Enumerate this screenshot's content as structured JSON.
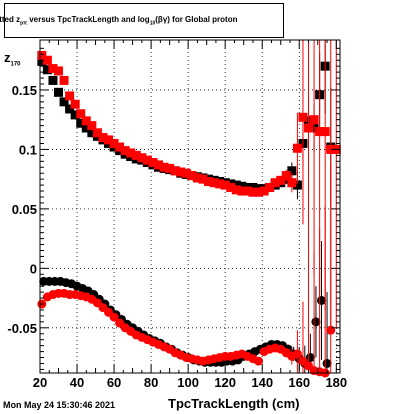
{
  "title": {
    "prefix": "itted  z",
    "sub1": "pπ",
    "middle": " versus TpcTrackLength and log",
    "sub2": "10",
    "suffix": "(βγ) for Global proton"
  },
  "footer": {
    "date": "Mon May 24 15:30:46 2021"
  },
  "chart_data": {
    "type": "scatter",
    "title": "itted zpπ versus TpcTrackLength and log10(βγ) for Global proton",
    "xlabel": "TpcTrackLength (cm)",
    "ylabel": {
      "main": "z",
      "sub": "170"
    },
    "xlim": [
      20,
      182
    ],
    "ylim": [
      -0.088,
      0.192
    ],
    "xticks": [
      20,
      40,
      60,
      80,
      100,
      120,
      140,
      160,
      180
    ],
    "yticks": [
      {
        "value": -0.05,
        "label": "-0.05"
      },
      {
        "value": 0,
        "label": "0"
      },
      {
        "value": 0.05,
        "label": "0.05"
      },
      {
        "value": 0.1,
        "label": "0.1"
      },
      {
        "value": 0.15,
        "label": "0.15"
      }
    ],
    "grid": true,
    "series": [
      {
        "marker": "square",
        "color": "#000000",
        "x": [
          21,
          24,
          27,
          30,
          33,
          36,
          39,
          42,
          45,
          48,
          51,
          54,
          57,
          60,
          63,
          66,
          69,
          72,
          75,
          78,
          81,
          84,
          87,
          90,
          93,
          96,
          99,
          102,
          105,
          108,
          111,
          114,
          117,
          120,
          123,
          126,
          129,
          132,
          135,
          138,
          141,
          144,
          147,
          150,
          153,
          156,
          159,
          162,
          165,
          168,
          171,
          174,
          177
        ],
        "y": [
          0.174,
          0.167,
          0.158,
          0.148,
          0.14,
          0.134,
          0.129,
          0.122,
          0.118,
          0.114,
          0.111,
          0.108,
          0.105,
          0.102,
          0.099,
          0.096,
          0.094,
          0.092,
          0.091,
          0.089,
          0.087,
          0.085,
          0.084,
          0.083,
          0.082,
          0.08,
          0.079,
          0.078,
          0.077,
          0.076,
          0.075,
          0.074,
          0.073,
          0.072,
          0.071,
          0.07,
          0.069,
          0.068,
          0.068,
          0.067,
          0.067,
          0.068,
          0.07,
          0.072,
          0.075,
          0.082,
          0.07,
          0.105,
          0.124,
          0.118,
          0.146,
          0.17,
          0.102
        ],
        "err": [
          0,
          0,
          0,
          0,
          0,
          0,
          0,
          0,
          0,
          0,
          0,
          0,
          0,
          0,
          0,
          0,
          0,
          0,
          0,
          0,
          0,
          0,
          0,
          0,
          0,
          0,
          0,
          0,
          0,
          0,
          0,
          0,
          0,
          0,
          0,
          0,
          0,
          0,
          0,
          0,
          0,
          0,
          0,
          0,
          0.004,
          0.007,
          0.012,
          0.02,
          0.02,
          0.02,
          0.035,
          0.04,
          0.05
        ]
      },
      {
        "marker": "square",
        "color": "#ff0000",
        "x": [
          21,
          24,
          27,
          30,
          33,
          36,
          39,
          42,
          45,
          48,
          51,
          54,
          57,
          60,
          63,
          66,
          69,
          72,
          75,
          78,
          81,
          84,
          87,
          90,
          93,
          96,
          99,
          102,
          105,
          108,
          111,
          114,
          117,
          120,
          123,
          126,
          129,
          132,
          135,
          138,
          141,
          144,
          147,
          150,
          153,
          156,
          159,
          162,
          165,
          168,
          171,
          174,
          177,
          180
        ],
        "y": [
          0.179,
          0.175,
          0.168,
          0.166,
          0.158,
          0.145,
          0.138,
          0.13,
          0.124,
          0.12,
          0.114,
          0.11,
          0.108,
          0.105,
          0.102,
          0.099,
          0.097,
          0.095,
          0.093,
          0.091,
          0.089,
          0.087,
          0.085,
          0.084,
          0.082,
          0.081,
          0.08,
          0.078,
          0.076,
          0.075,
          0.073,
          0.072,
          0.071,
          0.07,
          0.068,
          0.066,
          0.065,
          0.065,
          0.064,
          0.064,
          0.065,
          0.068,
          0.072,
          0.074,
          0.078,
          0.072,
          0.101,
          0.127,
          0.118,
          0.125,
          0.115,
          0.115,
          0.1,
          0.1
        ],
        "err": [
          0,
          0,
          0,
          0,
          0,
          0,
          0,
          0,
          0,
          0,
          0,
          0,
          0,
          0,
          0,
          0,
          0,
          0,
          0,
          0,
          0,
          0,
          0,
          0,
          0,
          0,
          0,
          0,
          0,
          0,
          0,
          0,
          0,
          0,
          0,
          0,
          0,
          0,
          0,
          0,
          0,
          0,
          0,
          0,
          0.005,
          0.008,
          0.03,
          0.09,
          0.12,
          0.13,
          0.14,
          0.15,
          0.15,
          0.15
        ]
      },
      {
        "marker": "circle",
        "color": "#000000",
        "x": [
          22,
          25,
          28,
          31,
          34,
          37,
          40,
          43,
          46,
          49,
          52,
          55,
          58,
          61,
          64,
          67,
          70,
          73,
          76,
          79,
          82,
          85,
          88,
          91,
          94,
          97,
          100,
          103,
          106,
          109,
          112,
          115,
          118,
          121,
          124,
          127,
          130,
          133,
          136,
          139,
          142,
          145,
          148,
          151,
          154,
          157,
          160,
          163,
          166,
          169,
          172,
          175
        ],
        "y": [
          -0.011,
          -0.011,
          -0.011,
          -0.011,
          -0.012,
          -0.013,
          -0.015,
          -0.017,
          -0.019,
          -0.022,
          -0.026,
          -0.03,
          -0.035,
          -0.039,
          -0.043,
          -0.047,
          -0.05,
          -0.053,
          -0.056,
          -0.059,
          -0.061,
          -0.063,
          -0.066,
          -0.068,
          -0.071,
          -0.073,
          -0.075,
          -0.077,
          -0.078,
          -0.079,
          -0.079,
          -0.079,
          -0.079,
          -0.078,
          -0.078,
          -0.077,
          -0.074,
          -0.072,
          -0.07,
          -0.068,
          -0.066,
          -0.064,
          -0.064,
          -0.065,
          -0.068,
          -0.072,
          -0.076,
          -0.08,
          -0.075,
          -0.045,
          -0.027,
          -0.08
        ],
        "err": [
          0,
          0,
          0,
          0,
          0,
          0,
          0,
          0,
          0,
          0,
          0,
          0,
          0,
          0,
          0,
          0,
          0,
          0,
          0,
          0,
          0,
          0,
          0,
          0,
          0,
          0,
          0,
          0,
          0,
          0,
          0,
          0,
          0,
          0,
          0,
          0,
          0,
          0,
          0,
          0,
          0,
          0,
          0,
          0,
          0.004,
          0.006,
          0.01,
          0.015,
          0.02,
          0.03,
          0.05,
          0.06
        ]
      },
      {
        "marker": "circle",
        "color": "#ff0000",
        "x": [
          21,
          24,
          27,
          30,
          33,
          36,
          39,
          42,
          45,
          48,
          51,
          54,
          57,
          60,
          63,
          66,
          69,
          72,
          75,
          78,
          81,
          84,
          87,
          90,
          93,
          96,
          99,
          102,
          105,
          108,
          111,
          114,
          117,
          120,
          123,
          126,
          129,
          132,
          135,
          138,
          141,
          144,
          147,
          150,
          153,
          156,
          159,
          162,
          165,
          168,
          171,
          174,
          177
        ],
        "y": [
          -0.03,
          -0.024,
          -0.022,
          -0.021,
          -0.021,
          -0.022,
          -0.022,
          -0.023,
          -0.024,
          -0.026,
          -0.029,
          -0.033,
          -0.037,
          -0.041,
          -0.046,
          -0.05,
          -0.053,
          -0.056,
          -0.058,
          -0.06,
          -0.062,
          -0.064,
          -0.066,
          -0.068,
          -0.071,
          -0.073,
          -0.075,
          -0.076,
          -0.077,
          -0.078,
          -0.077,
          -0.076,
          -0.075,
          -0.074,
          -0.074,
          -0.073,
          -0.072,
          -0.074,
          -0.076,
          -0.078,
          -0.07,
          -0.068,
          -0.067,
          -0.068,
          -0.071,
          -0.074,
          -0.072,
          -0.078,
          -0.082,
          -0.086,
          -0.087,
          -0.088,
          -0.052
        ],
        "err": [
          0,
          0,
          0,
          0,
          0,
          0,
          0,
          0,
          0,
          0,
          0,
          0,
          0,
          0,
          0,
          0,
          0,
          0,
          0,
          0,
          0,
          0,
          0,
          0,
          0,
          0,
          0,
          0,
          0,
          0,
          0,
          0,
          0,
          0,
          0,
          0,
          0,
          0,
          0,
          0,
          0,
          0,
          0,
          0,
          0.004,
          0.007,
          0.02,
          0.05,
          0.08,
          0.1,
          0.12,
          0.14,
          0.14
        ]
      }
    ]
  }
}
